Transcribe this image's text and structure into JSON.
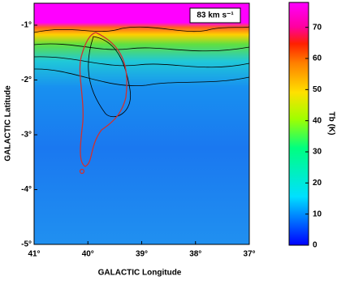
{
  "chart_data": {
    "type": "heatmap",
    "annotation": "83 km s⁻¹",
    "xlabel": "GALACTIC Longitude",
    "ylabel": "GALACTIC Latitude",
    "colorbar_label": "Tb (K)",
    "xlim": [
      41,
      37
    ],
    "xticks": [
      {
        "value": 41,
        "label": "41°"
      },
      {
        "value": 40,
        "label": "40°"
      },
      {
        "value": 39,
        "label": "39°"
      },
      {
        "value": 38,
        "label": "38°"
      },
      {
        "value": 37,
        "label": "37°"
      }
    ],
    "ylim": [
      -5,
      -0.6
    ],
    "yticks": [
      {
        "value": -1,
        "label": "-1°"
      },
      {
        "value": -2,
        "label": "-2°"
      },
      {
        "value": -3,
        "label": "-3°"
      },
      {
        "value": -4,
        "label": "-4°"
      },
      {
        "value": -5,
        "label": "-5°"
      }
    ],
    "zlim": [
      0,
      78
    ],
    "zticks": [
      0,
      10,
      20,
      30,
      40,
      50,
      60,
      70
    ]
  }
}
